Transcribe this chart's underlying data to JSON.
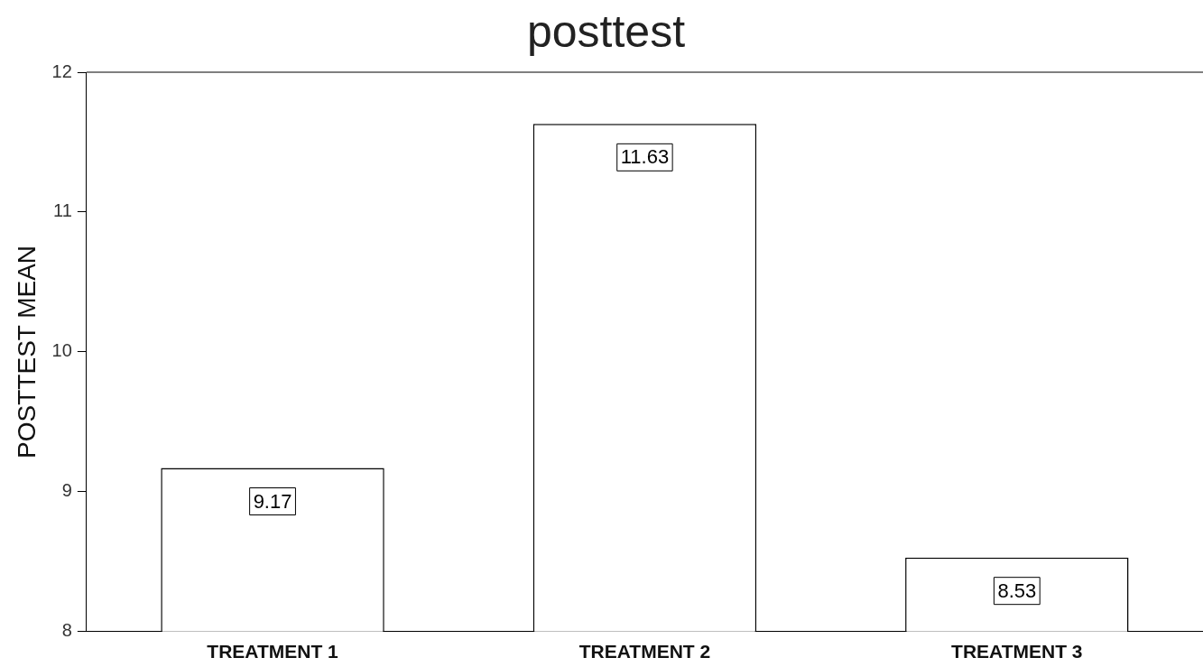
{
  "chart_data": {
    "type": "bar",
    "title": "posttest",
    "ylabel": "POSTTEST MEAN",
    "categories": [
      "TREATMENT 1",
      "TREATMENT 2",
      "TREATMENT 3"
    ],
    "values": [
      9.17,
      11.63,
      8.53
    ],
    "color": "#ffffff",
    "ylim": [
      8,
      12
    ],
    "yticks": [
      8,
      9,
      10,
      11,
      12
    ],
    "grid": false,
    "legend": false,
    "data_labels": true
  }
}
